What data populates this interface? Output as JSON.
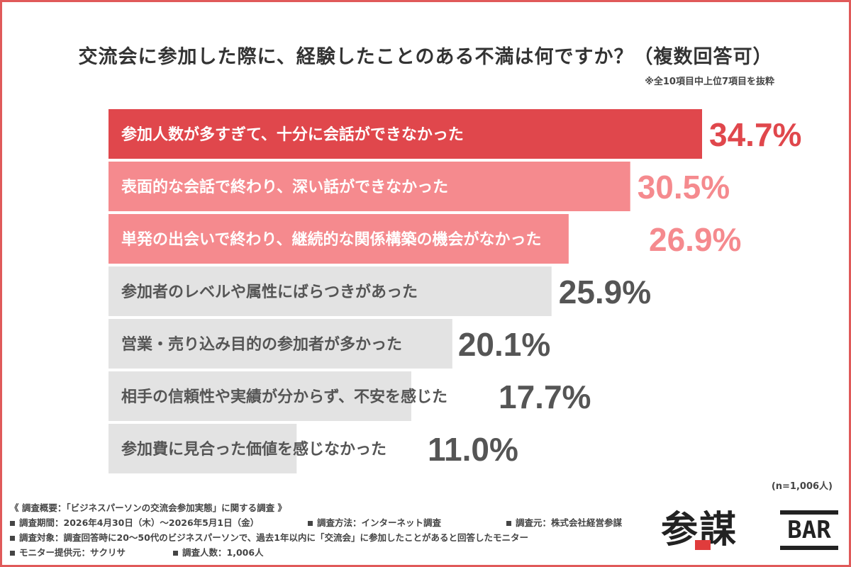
{
  "chart_data": {
    "type": "bar",
    "orientation": "horizontal",
    "title": "交流会に参加した際に、経験したことのある不満は何ですか？（複数回答可）",
    "note": "※全10項目中上位7項目を抜粋",
    "unit": "%",
    "categories": [
      "参加人数が多すぎて、十分に会話ができなかった",
      "表面的な会話で終わり、深い話ができなかった",
      "単発の出会いで終わり、継続的な関係構築の機会がなかった",
      "参加者のレベルや属性にばらつきがあった",
      "営業・売り込み目的の参加者が多かった",
      "相手の信頼性や実績が分からず、不安を感じた",
      "参加費に見合った価値を感じなかった"
    ],
    "values": [
      34.7,
      30.5,
      26.9,
      25.9,
      20.1,
      17.7,
      11.0
    ],
    "value_labels": [
      "34.7%",
      "30.5%",
      "26.9%",
      "25.9%",
      "20.1%",
      "17.7%",
      "11.0%"
    ],
    "bar_colors": [
      "#e0474c",
      "#f58a8e",
      "#f58a8e",
      "#e3e3e3",
      "#e3e3e3",
      "#e3e3e3",
      "#e3e3e3"
    ],
    "label_colors": [
      "#ffffff",
      "#ffffff",
      "#ffffff",
      "#555555",
      "#555555",
      "#555555",
      "#555555"
    ],
    "value_colors": [
      "#e0474c",
      "#f58a8e",
      "#f58a8e",
      "#555555",
      "#555555",
      "#555555",
      "#555555"
    ],
    "xlim": [
      0,
      34.7
    ],
    "grid": false,
    "sample_size": "(n=1,006人)"
  },
  "footer": {
    "heading": "《 調査概要：「ビジネスパーソンの交流会参加実態」に関する調査 》",
    "period": "調査期間：2026年4月30日（木）〜2026年5月1日（金）",
    "method": "調査方法：インターネット調査",
    "source": "調査元：株式会社経営参謀",
    "target": "調査対象：調査回答時に20〜50代のビジネスパーソンで、過去1年以内に「交流会」に参加したことがあると回答したモニター",
    "monitor": "モニター提供元：サクリサ",
    "count": "調査人数：1,006人"
  },
  "logo": {
    "kanji": "参謀",
    "bar": "BAR"
  }
}
